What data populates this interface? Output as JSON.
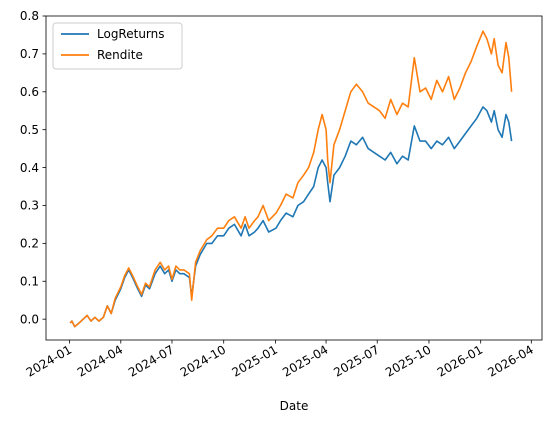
{
  "chart_data": {
    "type": "line",
    "title": "",
    "xlabel": "Date",
    "ylabel": "",
    "x_tick_labels": [
      "2024-01",
      "2024-04",
      "2024-07",
      "2024-10",
      "2025-01",
      "2025-04",
      "2025-07",
      "2025-10",
      "2026-01",
      "2026-04"
    ],
    "y_tick_labels": [
      "0.0",
      "0.1",
      "0.2",
      "0.3",
      "0.4",
      "0.5",
      "0.6",
      "0.7",
      "0.8"
    ],
    "xlim": [
      "2023-11-20",
      "2026-04-20"
    ],
    "ylim": [
      -0.055,
      0.8
    ],
    "grid": false,
    "legend": {
      "placement": "top-left",
      "entries": [
        "LogReturns",
        "Rendite"
      ]
    },
    "series": [
      {
        "name": "LogReturns",
        "color": "#1f77b4",
        "points": [
          [
            "2024-01-02",
            -0.01
          ],
          [
            "2024-01-05",
            -0.005
          ],
          [
            "2024-01-10",
            -0.02
          ],
          [
            "2024-01-18",
            -0.01
          ],
          [
            "2024-01-25",
            0.0
          ],
          [
            "2024-02-01",
            0.01
          ],
          [
            "2024-02-08",
            -0.005
          ],
          [
            "2024-02-15",
            0.005
          ],
          [
            "2024-02-22",
            -0.005
          ],
          [
            "2024-03-01",
            0.005
          ],
          [
            "2024-03-08",
            0.035
          ],
          [
            "2024-03-15",
            0.015
          ],
          [
            "2024-03-22",
            0.05
          ],
          [
            "2024-04-01",
            0.08
          ],
          [
            "2024-04-08",
            0.11
          ],
          [
            "2024-04-15",
            0.13
          ],
          [
            "2024-04-22",
            0.11
          ],
          [
            "2024-05-01",
            0.08
          ],
          [
            "2024-05-08",
            0.06
          ],
          [
            "2024-05-15",
            0.09
          ],
          [
            "2024-05-22",
            0.08
          ],
          [
            "2024-06-01",
            0.12
          ],
          [
            "2024-06-10",
            0.14
          ],
          [
            "2024-06-18",
            0.12
          ],
          [
            "2024-06-25",
            0.13
          ],
          [
            "2024-07-01",
            0.1
          ],
          [
            "2024-07-08",
            0.13
          ],
          [
            "2024-07-15",
            0.12
          ],
          [
            "2024-07-22",
            0.12
          ],
          [
            "2024-08-01",
            0.11
          ],
          [
            "2024-08-05",
            0.06
          ],
          [
            "2024-08-12",
            0.14
          ],
          [
            "2024-08-20",
            0.17
          ],
          [
            "2024-09-01",
            0.2
          ],
          [
            "2024-09-10",
            0.2
          ],
          [
            "2024-09-20",
            0.22
          ],
          [
            "2024-10-01",
            0.22
          ],
          [
            "2024-10-10",
            0.24
          ],
          [
            "2024-10-20",
            0.25
          ],
          [
            "2024-11-01",
            0.22
          ],
          [
            "2024-11-08",
            0.25
          ],
          [
            "2024-11-15",
            0.22
          ],
          [
            "2024-11-25",
            0.23
          ],
          [
            "2024-12-01",
            0.24
          ],
          [
            "2024-12-10",
            0.26
          ],
          [
            "2024-12-20",
            0.23
          ],
          [
            "2025-01-02",
            0.24
          ],
          [
            "2025-01-10",
            0.26
          ],
          [
            "2025-01-20",
            0.28
          ],
          [
            "2025-02-01",
            0.27
          ],
          [
            "2025-02-10",
            0.3
          ],
          [
            "2025-02-20",
            0.31
          ],
          [
            "2025-03-01",
            0.33
          ],
          [
            "2025-03-10",
            0.35
          ],
          [
            "2025-03-18",
            0.4
          ],
          [
            "2025-03-25",
            0.42
          ],
          [
            "2025-04-01",
            0.4
          ],
          [
            "2025-04-04",
            0.36
          ],
          [
            "2025-04-08",
            0.31
          ],
          [
            "2025-04-15",
            0.38
          ],
          [
            "2025-04-25",
            0.4
          ],
          [
            "2025-05-05",
            0.43
          ],
          [
            "2025-05-15",
            0.47
          ],
          [
            "2025-05-25",
            0.46
          ],
          [
            "2025-06-05",
            0.48
          ],
          [
            "2025-06-15",
            0.45
          ],
          [
            "2025-06-25",
            0.44
          ],
          [
            "2025-07-05",
            0.43
          ],
          [
            "2025-07-15",
            0.42
          ],
          [
            "2025-07-25",
            0.44
          ],
          [
            "2025-08-05",
            0.41
          ],
          [
            "2025-08-15",
            0.43
          ],
          [
            "2025-08-25",
            0.42
          ],
          [
            "2025-09-05",
            0.51
          ],
          [
            "2025-09-15",
            0.47
          ],
          [
            "2025-09-25",
            0.47
          ],
          [
            "2025-10-05",
            0.45
          ],
          [
            "2025-10-15",
            0.47
          ],
          [
            "2025-10-25",
            0.46
          ],
          [
            "2025-11-05",
            0.48
          ],
          [
            "2025-11-15",
            0.45
          ],
          [
            "2025-11-25",
            0.47
          ],
          [
            "2025-12-05",
            0.49
          ],
          [
            "2025-12-15",
            0.51
          ],
          [
            "2025-12-25",
            0.53
          ],
          [
            "2026-01-05",
            0.56
          ],
          [
            "2026-01-12",
            0.55
          ],
          [
            "2026-01-20",
            0.52
          ],
          [
            "2026-01-25",
            0.55
          ],
          [
            "2026-02-01",
            0.5
          ],
          [
            "2026-02-08",
            0.48
          ],
          [
            "2026-02-15",
            0.54
          ],
          [
            "2026-02-20",
            0.52
          ],
          [
            "2026-02-25",
            0.47
          ]
        ]
      },
      {
        "name": "Rendite",
        "color": "#ff7f0e",
        "points": [
          [
            "2024-01-02",
            -0.01
          ],
          [
            "2024-01-05",
            -0.005
          ],
          [
            "2024-01-10",
            -0.02
          ],
          [
            "2024-01-18",
            -0.01
          ],
          [
            "2024-01-25",
            0.0
          ],
          [
            "2024-02-01",
            0.01
          ],
          [
            "2024-02-08",
            -0.005
          ],
          [
            "2024-02-15",
            0.005
          ],
          [
            "2024-02-22",
            -0.005
          ],
          [
            "2024-03-01",
            0.005
          ],
          [
            "2024-03-08",
            0.035
          ],
          [
            "2024-03-15",
            0.015
          ],
          [
            "2024-03-22",
            0.055
          ],
          [
            "2024-04-01",
            0.085
          ],
          [
            "2024-04-08",
            0.115
          ],
          [
            "2024-04-15",
            0.135
          ],
          [
            "2024-04-22",
            0.115
          ],
          [
            "2024-05-01",
            0.085
          ],
          [
            "2024-05-08",
            0.065
          ],
          [
            "2024-05-15",
            0.095
          ],
          [
            "2024-05-22",
            0.085
          ],
          [
            "2024-06-01",
            0.13
          ],
          [
            "2024-06-10",
            0.15
          ],
          [
            "2024-06-18",
            0.13
          ],
          [
            "2024-06-25",
            0.14
          ],
          [
            "2024-07-01",
            0.105
          ],
          [
            "2024-07-08",
            0.14
          ],
          [
            "2024-07-15",
            0.13
          ],
          [
            "2024-07-22",
            0.13
          ],
          [
            "2024-08-01",
            0.12
          ],
          [
            "2024-08-05",
            0.05
          ],
          [
            "2024-08-12",
            0.15
          ],
          [
            "2024-08-20",
            0.18
          ],
          [
            "2024-09-01",
            0.21
          ],
          [
            "2024-09-10",
            0.22
          ],
          [
            "2024-09-20",
            0.24
          ],
          [
            "2024-10-01",
            0.24
          ],
          [
            "2024-10-10",
            0.26
          ],
          [
            "2024-10-20",
            0.27
          ],
          [
            "2024-11-01",
            0.24
          ],
          [
            "2024-11-08",
            0.27
          ],
          [
            "2024-11-15",
            0.24
          ],
          [
            "2024-11-25",
            0.26
          ],
          [
            "2024-12-01",
            0.27
          ],
          [
            "2024-12-10",
            0.3
          ],
          [
            "2024-12-20",
            0.26
          ],
          [
            "2025-01-02",
            0.28
          ],
          [
            "2025-01-10",
            0.3
          ],
          [
            "2025-01-20",
            0.33
          ],
          [
            "2025-02-01",
            0.32
          ],
          [
            "2025-02-10",
            0.36
          ],
          [
            "2025-02-20",
            0.38
          ],
          [
            "2025-03-01",
            0.4
          ],
          [
            "2025-03-10",
            0.44
          ],
          [
            "2025-03-18",
            0.5
          ],
          [
            "2025-03-25",
            0.54
          ],
          [
            "2025-04-01",
            0.5
          ],
          [
            "2025-04-04",
            0.42
          ],
          [
            "2025-04-08",
            0.36
          ],
          [
            "2025-04-15",
            0.46
          ],
          [
            "2025-04-25",
            0.5
          ],
          [
            "2025-05-05",
            0.55
          ],
          [
            "2025-05-15",
            0.6
          ],
          [
            "2025-05-25",
            0.62
          ],
          [
            "2025-06-05",
            0.6
          ],
          [
            "2025-06-15",
            0.57
          ],
          [
            "2025-06-25",
            0.56
          ],
          [
            "2025-07-05",
            0.55
          ],
          [
            "2025-07-15",
            0.53
          ],
          [
            "2025-07-25",
            0.58
          ],
          [
            "2025-08-05",
            0.54
          ],
          [
            "2025-08-15",
            0.57
          ],
          [
            "2025-08-25",
            0.56
          ],
          [
            "2025-09-05",
            0.69
          ],
          [
            "2025-09-15",
            0.6
          ],
          [
            "2025-09-25",
            0.61
          ],
          [
            "2025-10-05",
            0.58
          ],
          [
            "2025-10-15",
            0.63
          ],
          [
            "2025-10-25",
            0.6
          ],
          [
            "2025-11-05",
            0.64
          ],
          [
            "2025-11-15",
            0.58
          ],
          [
            "2025-11-25",
            0.61
          ],
          [
            "2025-12-05",
            0.65
          ],
          [
            "2025-12-15",
            0.68
          ],
          [
            "2025-12-25",
            0.72
          ],
          [
            "2026-01-05",
            0.76
          ],
          [
            "2026-01-12",
            0.74
          ],
          [
            "2026-01-20",
            0.7
          ],
          [
            "2026-01-25",
            0.74
          ],
          [
            "2026-02-01",
            0.67
          ],
          [
            "2026-02-08",
            0.65
          ],
          [
            "2026-02-15",
            0.73
          ],
          [
            "2026-02-20",
            0.69
          ],
          [
            "2026-02-25",
            0.6
          ]
        ]
      }
    ]
  }
}
